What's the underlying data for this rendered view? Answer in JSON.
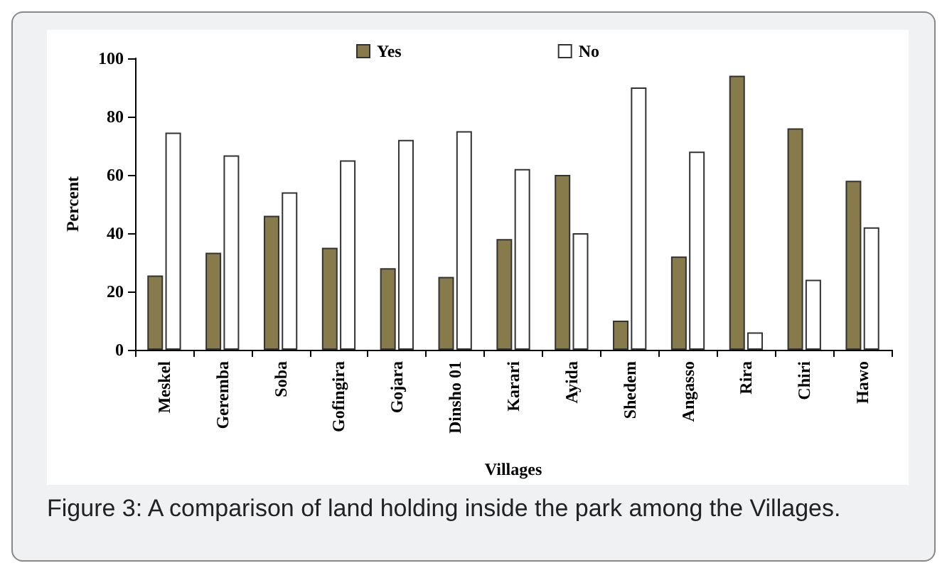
{
  "chart_data": {
    "type": "bar",
    "xlabel": "Villages",
    "ylabel": "Percent",
    "categories": [
      "Meskel",
      "Geremba",
      "Soba",
      "Gofingira",
      "Gojara",
      "Dinsho 01",
      "Karari",
      "Ayida",
      "Shedem",
      "Angasso",
      "Rira",
      "Chiri",
      "Hawo"
    ],
    "series": [
      {
        "name": "Yes",
        "color": "#877b4b",
        "values": [
          25.5,
          33.3,
          46,
          35,
          28,
          25,
          38,
          60,
          10,
          32,
          94,
          76,
          58
        ]
      },
      {
        "name": "No",
        "color": "#ffffff",
        "values": [
          74.5,
          66.7,
          54,
          65,
          72,
          75,
          62,
          40,
          90,
          68,
          6,
          24,
          42
        ]
      }
    ],
    "ylim": [
      0,
      100
    ],
    "yticks": [
      0,
      20,
      40,
      60,
      80,
      100
    ],
    "grid": false,
    "legend": "top",
    "annotations": [
      "Figure 3: A comparison of land holding inside the park among the Villages."
    ]
  }
}
